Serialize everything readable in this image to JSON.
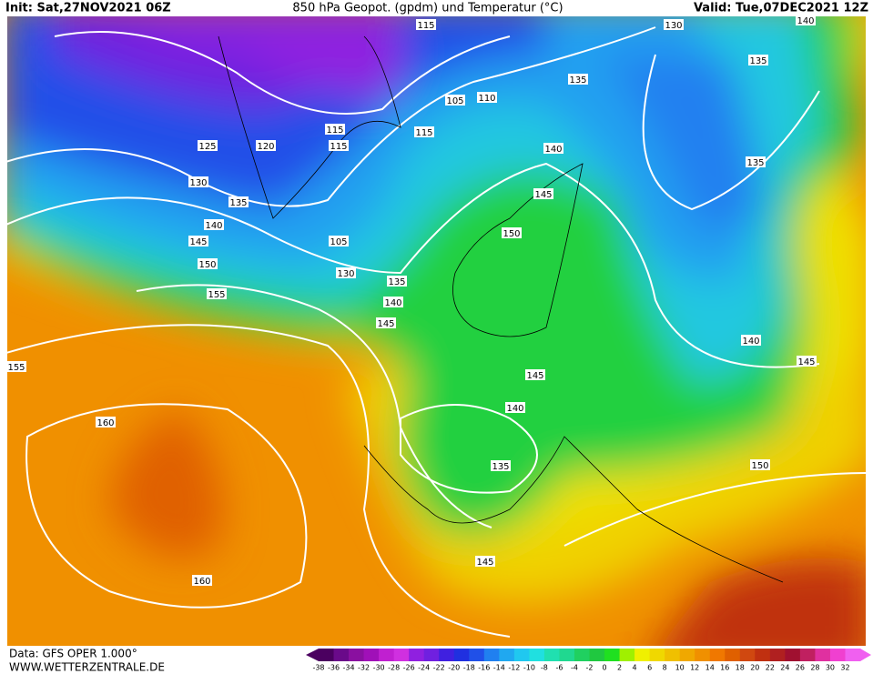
{
  "header": {
    "init": "Init: Sat,27NOV2021 06Z",
    "title": "850 hPa Geopot. (gpdm) und Temperatur (°C)",
    "valid": "Valid: Tue,07DEC2021 12Z"
  },
  "footer": {
    "source": "Data: GFS OPER 1.000°",
    "site": "WWW.WETTERZENTRALE.DE"
  },
  "colorbar": {
    "labels": [
      -38,
      -36,
      -34,
      -32,
      -30,
      -28,
      -26,
      -24,
      -22,
      -20,
      -18,
      -16,
      -14,
      -12,
      -10,
      -8,
      -6,
      -4,
      -2,
      0,
      2,
      4,
      6,
      8,
      10,
      12,
      14,
      16,
      18,
      20,
      22,
      24,
      26,
      28,
      30,
      32
    ],
    "colors": [
      "#4b0060",
      "#6a0a8a",
      "#8a10a0",
      "#a010b8",
      "#c020d0",
      "#d030e0",
      "#9020e0",
      "#7020e0",
      "#4020e0",
      "#2030e0",
      "#2050e8",
      "#2080f0",
      "#20a8f0",
      "#20c8f0",
      "#20e0e0",
      "#20e0b0",
      "#20d890",
      "#20d060",
      "#20c840",
      "#20e020",
      "#a0f000",
      "#f0f000",
      "#f0d800",
      "#f0c000",
      "#f0a800",
      "#f09000",
      "#f07800",
      "#e06000",
      "#d04810",
      "#c03010",
      "#b02020",
      "#a01030",
      "#c02060",
      "#e030a0",
      "#f040d0",
      "#f060f0"
    ]
  },
  "contour_labels": [
    115,
    130,
    140,
    135,
    135,
    105,
    110,
    115,
    115,
    125,
    120,
    115,
    140,
    130,
    135,
    145,
    150,
    135,
    140,
    145,
    105,
    130,
    150,
    155,
    135,
    140,
    145,
    140,
    145,
    155,
    145,
    140,
    160,
    135,
    150,
    145,
    160
  ]
}
